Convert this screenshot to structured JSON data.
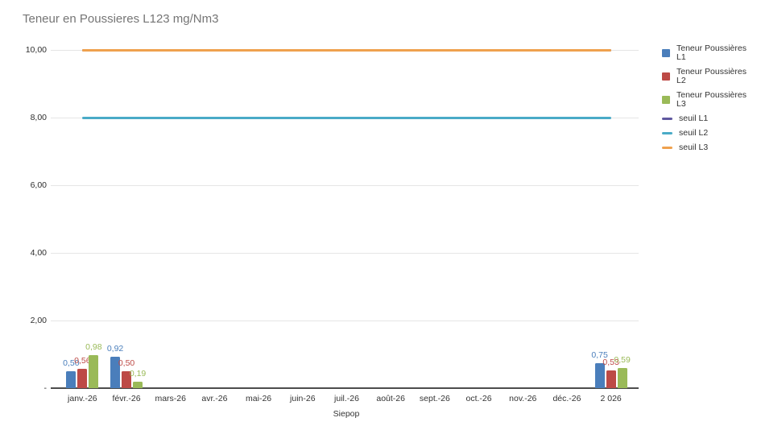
{
  "chart_data": {
    "type": "bar",
    "title": "Teneur en Poussieres L123 mg/Nm3",
    "xlabel": "Siepop",
    "ylim": [
      0,
      10
    ],
    "grid": true,
    "legend_position": "right",
    "categories": [
      "janv.-26",
      "févr.-26",
      "mars-26",
      "avr.-26",
      "mai-26",
      "juin-26",
      "juil.-26",
      "août-26",
      "sept.-26",
      "oct.-26",
      "nov.-26",
      "déc.-26",
      "2 026"
    ],
    "y_ticks": [
      {
        "label": "10,00",
        "value": 10
      },
      {
        "label": "8,00",
        "value": 8
      },
      {
        "label": "6,00",
        "value": 6
      },
      {
        "label": "4,00",
        "value": 4
      },
      {
        "label": "2,00",
        "value": 2
      },
      {
        "label": "-",
        "value": 0
      }
    ],
    "bar_series": [
      {
        "name": "Teneur Poussières L1",
        "color": "#4a7ebb",
        "values": [
          0.5,
          0.92,
          null,
          null,
          null,
          null,
          null,
          null,
          null,
          null,
          null,
          null,
          0.75
        ],
        "labels": [
          "0,50",
          "0,92",
          "",
          "",
          "",
          "",
          "",
          "",
          "",
          "",
          "",
          "",
          "0,75"
        ]
      },
      {
        "name": "Teneur Poussières L2",
        "color": "#bd4a46",
        "values": [
          0.56,
          0.5,
          null,
          null,
          null,
          null,
          null,
          null,
          null,
          null,
          null,
          null,
          0.53
        ],
        "labels": [
          "0,56",
          "0,50",
          "",
          "",
          "",
          "",
          "",
          "",
          "",
          "",
          "",
          "",
          "0,53"
        ]
      },
      {
        "name": "Teneur Poussières L3",
        "color": "#9aba58",
        "values": [
          0.98,
          0.19,
          null,
          null,
          null,
          null,
          null,
          null,
          null,
          null,
          null,
          null,
          0.59
        ],
        "labels": [
          "0,98",
          "0,19",
          "",
          "",
          "",
          "",
          "",
          "",
          "",
          "",
          "",
          "",
          "0,59"
        ]
      }
    ],
    "threshold_series": [
      {
        "name": "seuil L1",
        "color": "#5f589f",
        "value": 10
      },
      {
        "name": "seuil L2",
        "color": "#4aabc7",
        "value": 8
      },
      {
        "name": "seuil L3",
        "color": "#efa14e",
        "value": 10
      }
    ]
  }
}
